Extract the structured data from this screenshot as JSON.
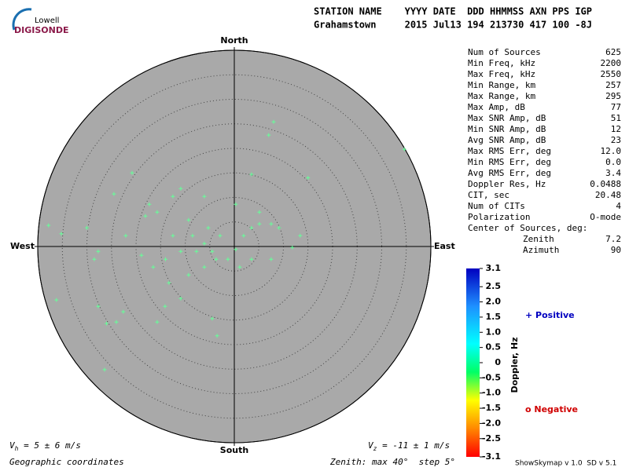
{
  "logo": {
    "top": "Lowell",
    "bottom": "DIGISONDE"
  },
  "header": {
    "line1": "STATION NAME    YYYY DATE  DDD HHMMSS AXN PPS IGP",
    "line2": "Grahamstown     2015 Jul13 194 213730 417 100 -8J"
  },
  "stats": [
    [
      "Num of Sources",
      "625"
    ],
    [
      "Min Freq, kHz",
      "2200"
    ],
    [
      "Max Freq, kHz",
      "2550"
    ],
    [
      "Min Range, km",
      "257"
    ],
    [
      "Max Range, km",
      "295"
    ],
    [
      "Max Amp, dB",
      "77"
    ],
    [
      "Max SNR Amp, dB",
      "51"
    ],
    [
      "Min SNR Amp, dB",
      "12"
    ],
    [
      "Avg SNR Amp, dB",
      "23"
    ],
    [
      "Max RMS Err, deg",
      "12.0"
    ],
    [
      "Min RMS Err, deg",
      "0.0"
    ],
    [
      "Avg RMS Err, deg",
      "3.4"
    ],
    [
      "Doppler Res, Hz",
      "0.0488"
    ],
    [
      "CIT, sec",
      "20.48"
    ],
    [
      "Num of CITs",
      "4"
    ],
    [
      "Polarization",
      "O-mode"
    ],
    [
      "Center of Sources, deg:",
      null
    ],
    [
      "Zenith",
      "7.2"
    ],
    [
      "Azimuth",
      "90"
    ]
  ],
  "legend": {
    "positive": "+ Positive",
    "negative": "o Negative"
  },
  "footer": {
    "vh_v": "V",
    "vh_sub": "h",
    "vh_rest": " = 5 ± 6 m/s",
    "vz_v": "V",
    "vz_sub": "z",
    "vz_rest": " = -11 ± 1 m/s",
    "coords": "Geographic coordinates",
    "zenith": "Zenith: max 40°  step 5°",
    "version": "ShowSkymap v 1.0  SD v 5.1"
  },
  "chart_data": {
    "type": "skymap",
    "directions": {
      "north": "North",
      "south": "South",
      "east": "East",
      "west": "West"
    },
    "xlim": [
      -40,
      40
    ],
    "ylim": [
      -40,
      40
    ],
    "rticks": [
      5,
      10,
      15,
      20,
      25,
      30,
      35,
      40
    ],
    "color": "#66ff99",
    "x": [
      8,
      7,
      34.6,
      -20.8,
      -24.5,
      -10.9,
      -6.1,
      3.5,
      15,
      -37.8,
      -35.2,
      -30,
      -27.7,
      -28.5,
      -36.2,
      -27.7,
      -26,
      -24,
      -22.6,
      -26.4,
      -15.7,
      -10.9,
      -4.5,
      -3.5,
      -9.3,
      -14,
      -12.5,
      -7.7,
      -6.1,
      -4.5,
      -2.9,
      -1.3,
      0.3,
      1.9,
      3.5,
      5.1,
      7.5,
      9.1,
      11.8,
      13.4,
      5.1,
      0.3,
      -9.3,
      -15.7,
      -18.1,
      -18.9,
      -16.5,
      -13.3,
      -6.1,
      -10.9,
      -8.5,
      -5.3,
      -3.7,
      1.1,
      3.5,
      7.5,
      -12.5,
      -17.3,
      -22.1,
      -14.1
    ],
    "y": [
      25.4,
      22.7,
      19.8,
      15,
      10.7,
      11.8,
      10.2,
      14.7,
      14,
      4.3,
      2.6,
      3.8,
      -1,
      -2.6,
      -10.9,
      -12.2,
      -15.7,
      -15.4,
      -13.3,
      -25.1,
      -15.4,
      -10.6,
      -14.7,
      -18.2,
      -5.8,
      -2.6,
      2.2,
      -1,
      0.6,
      -1,
      2.2,
      -2.6,
      -0.6,
      2.2,
      3.8,
      4.6,
      4.6,
      3.8,
      -0.2,
      2.2,
      7,
      8.6,
      5.4,
      7,
      6.2,
      -1.8,
      -4.2,
      -7.4,
      -4.2,
      -1,
      2.2,
      3.8,
      -2.6,
      -4.2,
      -2.6,
      -2.6,
      10.2,
      8.6,
      2.2,
      -12.2
    ],
    "colorbar": {
      "label": "Doppler, Hz",
      "lim": [
        -3.1,
        3.1
      ],
      "ticks": [
        3.1,
        2.5,
        {
          "value": 2,
          "label": "2.0"
        },
        1.5,
        {
          "value": 1,
          "label": "1.0"
        },
        0.5,
        0,
        -0.5,
        {
          "value": -1,
          "label": "-1.0"
        },
        -1.5,
        {
          "value": -2,
          "label": "-2.0"
        },
        -2.5,
        -3.1
      ]
    }
  }
}
